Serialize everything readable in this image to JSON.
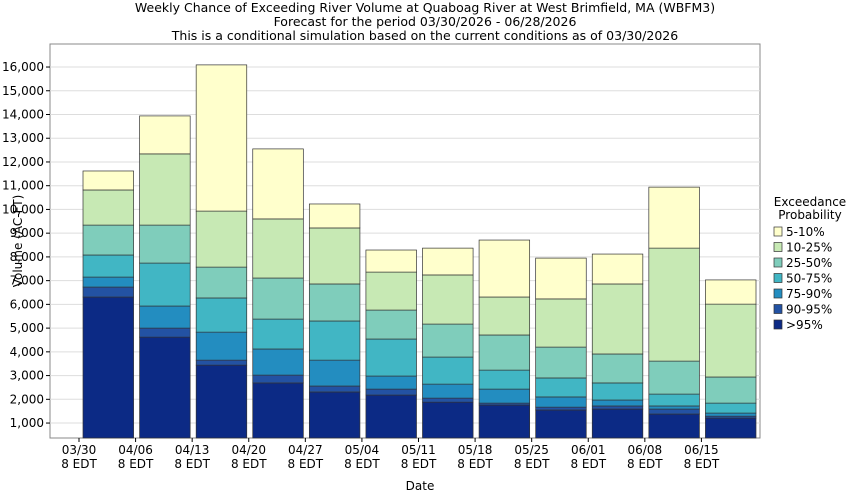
{
  "chart_data": {
    "type": "stacked_bar",
    "title": "Weekly Chance of Exceeding River Volume at Quaboag River at West Brimfield, MA (WBFM3)",
    "subtitle": "Forecast for the period 03/30/2026 - 06/28/2026",
    "note": "This is a conditional simulation based on the current conditions as of 03/30/2026",
    "x_label": "Date",
    "y_label": "Volume (AC-FT)",
    "legend_title": "Exceedance Probability",
    "categories": [
      "03/30 8 EDT",
      "04/06 8 EDT",
      "04/13 8 EDT",
      "04/20 8 EDT",
      "04/27 8 EDT",
      "05/04 8 EDT",
      "05/11 8 EDT",
      "05/18 8 EDT",
      "05/25 8 EDT",
      "06/01 8 EDT",
      "06/08 8 EDT",
      "06/15 8 EDT"
    ],
    "series": [
      {
        "name": ">95%",
        "color": "#0c2a85",
        "values": [
          6310,
          4620,
          3440,
          2690,
          2310,
          2180,
          1880,
          1760,
          1550,
          1590,
          1380,
          1210
        ]
      },
      {
        "name": "90-95%",
        "color": "#2352a3",
        "values": [
          420,
          380,
          210,
          330,
          250,
          250,
          170,
          80,
          120,
          130,
          210,
          80
        ]
      },
      {
        "name": "75-90%",
        "color": "#238dc0",
        "values": [
          420,
          930,
          1180,
          1100,
          1090,
          550,
          590,
          590,
          430,
          250,
          130,
          130
        ]
      },
      {
        "name": "50-75%",
        "color": "#41b6c4",
        "values": [
          930,
          1810,
          1440,
          1260,
          1650,
          1560,
          1140,
          800,
          800,
          720,
          500,
          420
        ]
      },
      {
        "name": "25-50%",
        "color": "#7fcdbb",
        "values": [
          1260,
          1600,
          1300,
          1730,
          1560,
          1220,
          1390,
          1480,
          1300,
          1220,
          1390,
          1100
        ]
      },
      {
        "name": "10-25%",
        "color": "#c7e9b4",
        "values": [
          1480,
          3000,
          2360,
          2490,
          2360,
          1600,
          2070,
          1600,
          2030,
          2950,
          4760,
          3070
        ]
      },
      {
        "name": "5-10%",
        "color": "#ffffcc",
        "values": [
          800,
          1600,
          6160,
          2950,
          1010,
          930,
          1130,
          2400,
          1720,
          1260,
          2570,
          1020
        ]
      }
    ],
    "ylim": [
      370,
      16970
    ],
    "yticks": [
      {
        "value": 1000,
        "label": "1,000"
      },
      {
        "value": 2000,
        "label": "2,000"
      },
      {
        "value": 3000,
        "label": "3,000"
      },
      {
        "value": 4000,
        "label": "4,000"
      },
      {
        "value": 5000,
        "label": "5,000"
      },
      {
        "value": 6000,
        "label": "6,000"
      },
      {
        "value": 7000,
        "label": "7,000"
      },
      {
        "value": 8000,
        "label": "8,000"
      },
      {
        "value": 9000,
        "label": "9,000"
      },
      {
        "value": 10000,
        "label": "10,000"
      },
      {
        "value": 11000,
        "label": "11,000"
      },
      {
        "value": 12000,
        "label": "12,000"
      },
      {
        "value": 13000,
        "label": "13,000"
      },
      {
        "value": 14000,
        "label": "14,000"
      },
      {
        "value": 15000,
        "label": "15,000"
      },
      {
        "value": 16000,
        "label": "16,000"
      }
    ],
    "grid": true
  }
}
